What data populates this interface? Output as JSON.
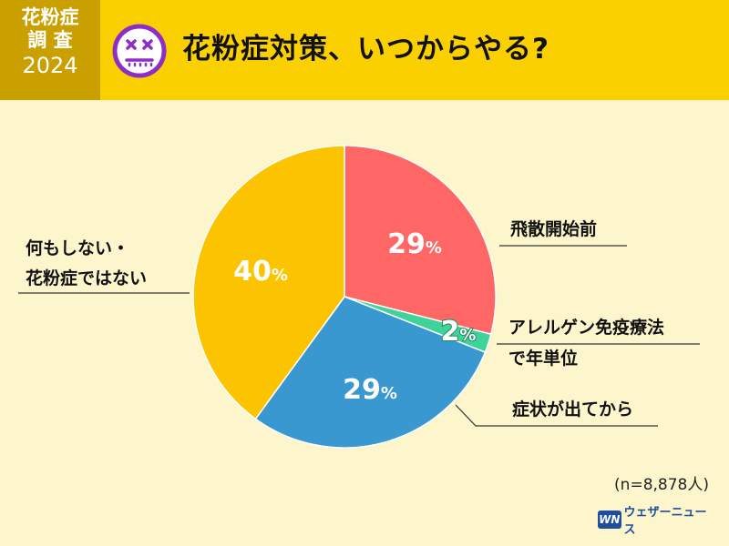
{
  "header": {
    "badge_line1": "花粉症",
    "badge_line2": "調 査",
    "badge_year": "2024",
    "title": "花粉症対策、いつからやる?",
    "face_icon": "dizzy-face-icon"
  },
  "colors": {
    "header_bg": "#fbd000",
    "badge_bg": "#c9a000",
    "page_bg": "#fdf6cc",
    "face": "#8d2fc4"
  },
  "chart_data": {
    "type": "pie",
    "slices": [
      {
        "label": "飛散開始前",
        "value": 29,
        "display": "29",
        "color": "#ff6666"
      },
      {
        "label": "アレルゲン免疫療法で年単位",
        "label_line1": "アレルゲン免疫療法",
        "label_line2": "で年単位",
        "value": 2,
        "display": "2",
        "color": "#3fd39a"
      },
      {
        "label": "症状が出てから",
        "value": 29,
        "display": "29",
        "color": "#3a98d0"
      },
      {
        "label": "何もしない・花粉症ではない",
        "label_line1": "何もしない・",
        "label_line2": "花粉症ではない",
        "value": 40,
        "display": "40",
        "color": "#fcc400"
      }
    ],
    "unit": "%",
    "start": "12 o'clock",
    "direction": "clockwise"
  },
  "footer": {
    "sample_note": "(n=8,878人)",
    "logo_mark": "WN",
    "logo_text": "ウェザーニュース"
  }
}
